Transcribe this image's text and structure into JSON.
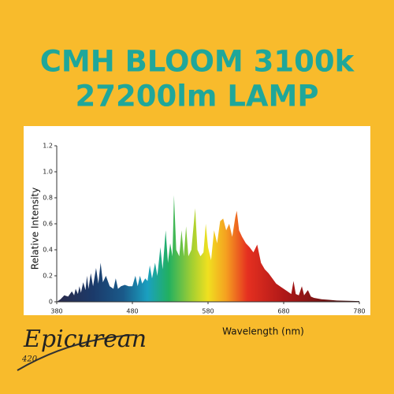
{
  "chart_data": {
    "type": "area",
    "title": "CMH BLOOM 3100k",
    "subtitle": "27200lm LAMP",
    "x_label": "Wavelength (nm)",
    "y_label": "Relative Intensity",
    "x": [
      380,
      385,
      390,
      395,
      400,
      403,
      405,
      408,
      410,
      412,
      415,
      418,
      420,
      422,
      425,
      428,
      432,
      435,
      438,
      441,
      445,
      450,
      455,
      458,
      461,
      465,
      470,
      475,
      480,
      484,
      487,
      490,
      493,
      497,
      500,
      503,
      506,
      510,
      513,
      517,
      520,
      524,
      527,
      530,
      533,
      535,
      538,
      542,
      545,
      548,
      551,
      554,
      558,
      563,
      566,
      570,
      574,
      577,
      580,
      584,
      588,
      592,
      596,
      600,
      604,
      608,
      612,
      616,
      618,
      621,
      625,
      630,
      635,
      640,
      645,
      650,
      655,
      660,
      665,
      670,
      675,
      680,
      685,
      690,
      693,
      696,
      700,
      704,
      707,
      712,
      716,
      720,
      730,
      740,
      750,
      760,
      780
    ],
    "values": [
      0,
      0.02,
      0.05,
      0.04,
      0.08,
      0.05,
      0.1,
      0.06,
      0.12,
      0.07,
      0.15,
      0.09,
      0.2,
      0.1,
      0.22,
      0.12,
      0.26,
      0.14,
      0.3,
      0.15,
      0.2,
      0.12,
      0.1,
      0.18,
      0.1,
      0.12,
      0.13,
      0.12,
      0.12,
      0.2,
      0.12,
      0.2,
      0.14,
      0.18,
      0.16,
      0.28,
      0.18,
      0.3,
      0.2,
      0.42,
      0.25,
      0.55,
      0.3,
      0.45,
      0.35,
      0.82,
      0.4,
      0.35,
      0.55,
      0.35,
      0.58,
      0.35,
      0.4,
      0.72,
      0.4,
      0.35,
      0.38,
      0.6,
      0.42,
      0.32,
      0.55,
      0.45,
      0.62,
      0.64,
      0.55,
      0.6,
      0.5,
      0.65,
      0.7,
      0.55,
      0.5,
      0.45,
      0.42,
      0.38,
      0.44,
      0.3,
      0.25,
      0.22,
      0.18,
      0.14,
      0.12,
      0.1,
      0.08,
      0.06,
      0.16,
      0.06,
      0.05,
      0.12,
      0.05,
      0.09,
      0.04,
      0.03,
      0.02,
      0.015,
      0.01,
      0.008,
      0.005
    ],
    "xlim": [
      380,
      780
    ],
    "xticks": [
      380,
      480,
      580,
      680,
      780
    ],
    "ylim": [
      0,
      1.2
    ],
    "yticks": [
      0,
      0.2,
      0.4,
      0.6,
      0.8,
      {
        "value": 1,
        "label": "1.0"
      },
      1.2
    ]
  },
  "logo": {
    "name": "Epicurean",
    "badge": "420"
  }
}
